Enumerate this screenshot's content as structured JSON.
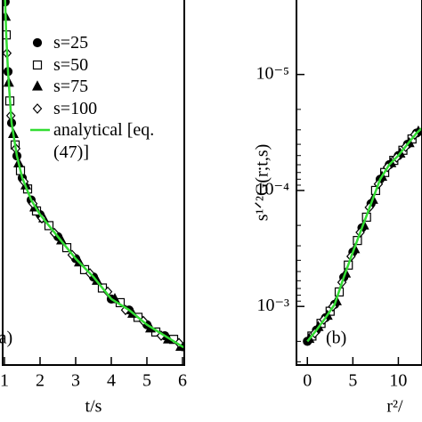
{
  "chart_data": [
    {
      "type": "line",
      "panel_label": "(a)",
      "xlabel": "t/s",
      "xlim": [
        0.95,
        6.05
      ],
      "ylim": [
        0,
        1
      ],
      "xticks": [
        1,
        2,
        3,
        4,
        5,
        6
      ],
      "legend": "upper right",
      "series": [
        {
          "name": "s=25",
          "marker": "circle",
          "color": "#000000",
          "x": [
            1.02,
            1.1,
            1.2,
            1.35,
            1.5,
            1.75,
            2,
            2.5,
            3,
            3.5,
            4,
            4.5,
            5,
            5.5,
            6
          ],
          "values": [
            0.99,
            0.8,
            0.66,
            0.57,
            0.51,
            0.45,
            0.41,
            0.35,
            0.29,
            0.24,
            0.18,
            0.15,
            0.11,
            0.08,
            0.05
          ]
        },
        {
          "name": "s=50",
          "marker": "square",
          "color": "#000000",
          "x": [
            1.05,
            1.15,
            1.3,
            1.45,
            1.65,
            1.9,
            2.25,
            2.75,
            3.25,
            3.75,
            4.25,
            4.75,
            5.25,
            5.75
          ],
          "values": [
            0.9,
            0.72,
            0.6,
            0.53,
            0.48,
            0.42,
            0.38,
            0.32,
            0.26,
            0.21,
            0.17,
            0.13,
            0.09,
            0.07
          ]
        },
        {
          "name": "s=75",
          "marker": "triangle",
          "color": "#000000",
          "x": [
            1.03,
            1.12,
            1.25,
            1.4,
            1.6,
            1.85,
            2.1,
            2.6,
            3.1,
            3.6,
            4.1,
            4.6,
            5.1,
            5.6,
            5.95
          ],
          "values": [
            0.95,
            0.77,
            0.63,
            0.55,
            0.49,
            0.43,
            0.4,
            0.34,
            0.28,
            0.23,
            0.18,
            0.14,
            0.1,
            0.07,
            0.05
          ]
        },
        {
          "name": "s=100",
          "marker": "diamond",
          "color": "#000000",
          "x": [
            1.07,
            1.18,
            1.32,
            1.55,
            1.8,
            2.05,
            2.4,
            2.9,
            3.4,
            3.9,
            4.4,
            4.9,
            5.4,
            5.9
          ],
          "values": [
            0.85,
            0.68,
            0.59,
            0.5,
            0.44,
            0.4,
            0.36,
            0.3,
            0.25,
            0.2,
            0.15,
            0.12,
            0.08,
            0.06
          ]
        },
        {
          "name": "analytical [eq.(47)]",
          "marker": "none",
          "color": "#33dd33",
          "x": [
            1.0,
            1.02,
            1.05,
            1.1,
            1.2,
            1.35,
            1.5,
            1.75,
            2,
            2.5,
            3,
            3.5,
            4,
            4.5,
            5,
            5.5,
            6,
            6.05
          ],
          "values": [
            1.05,
            0.99,
            0.9,
            0.8,
            0.66,
            0.57,
            0.51,
            0.45,
            0.41,
            0.35,
            0.29,
            0.24,
            0.18,
            0.15,
            0.11,
            0.08,
            0.05,
            0.048
          ]
        }
      ]
    },
    {
      "type": "line",
      "panel_label": "(b)",
      "xlabel": "r²/",
      "ylabel": "s¹ᐟ²G(r;t,s)",
      "log_y": true,
      "xlim": [
        -1.2,
        12.6
      ],
      "ylim": [
        0.0032,
        2.2e-06
      ],
      "xticks": [
        0,
        5,
        10
      ],
      "yticks": [
        {
          "value": 0.001,
          "label": "10⁻³"
        },
        {
          "value": 0.0001,
          "label": "10⁻⁴"
        },
        {
          "value": 1e-05,
          "label": "10⁻⁵"
        }
      ],
      "series": [
        {
          "marker": "circle",
          "color": "#000000",
          "x": [
            0,
            1,
            2,
            3,
            4,
            5,
            6,
            7,
            8,
            9,
            10,
            11,
            12
          ],
          "values": [
            0.002,
            0.0016,
            0.00125,
            0.00096,
            0.00056,
            0.00034,
            0.00021,
            0.00013,
            8e-05,
            6e-05,
            5e-05,
            4e-05,
            3.2e-05
          ]
        },
        {
          "marker": "square",
          "color": "#000000",
          "x": [
            0.5,
            1.5,
            2.5,
            3.5,
            4.5,
            5.5,
            6.5,
            7.5,
            8.5,
            9.5,
            10.5,
            11.5
          ],
          "values": [
            0.0018,
            0.0014,
            0.0011,
            0.00075,
            0.00044,
            0.00027,
            0.00017,
            0.0001,
            7e-05,
            5.5e-05,
            4.5e-05,
            3.6e-05
          ]
        },
        {
          "marker": "triangle",
          "color": "#000000",
          "x": [
            0.2,
            1.2,
            2.2,
            3.2,
            4.2,
            5.2,
            6.2,
            7.2,
            8.2,
            9.2,
            10.2,
            11.2,
            12.2
          ],
          "values": [
            0.0019,
            0.0015,
            0.0012,
            0.0009,
            0.00052,
            0.00032,
            0.0002,
            0.00012,
            7.6e-05,
            5.8e-05,
            4.8e-05,
            3.9e-05,
            3.1e-05
          ]
        },
        {
          "marker": "diamond",
          "color": "#000000",
          "x": [
            0.8,
            1.8,
            2.8,
            3.8,
            4.8,
            5.8,
            6.8,
            7.8,
            8.8,
            9.8,
            10.8,
            11.8
          ],
          "values": [
            0.0017,
            0.0013,
            0.001,
            0.00062,
            0.00037,
            0.00023,
            0.00014,
            8.8e-05,
            6.3e-05,
            5.2e-05,
            4.2e-05,
            3.3e-05
          ]
        },
        {
          "marker": "none",
          "color": "#33dd33",
          "x": [
            0,
            1,
            2,
            3,
            4,
            5,
            6,
            7,
            8,
            9,
            10,
            11,
            12,
            12.6
          ],
          "values": [
            0.002,
            0.0016,
            0.00125,
            0.00096,
            0.00056,
            0.00034,
            0.00021,
            0.00013,
            8e-05,
            6e-05,
            5e-05,
            4e-05,
            3.2e-05,
            2.9e-05
          ]
        }
      ]
    }
  ]
}
